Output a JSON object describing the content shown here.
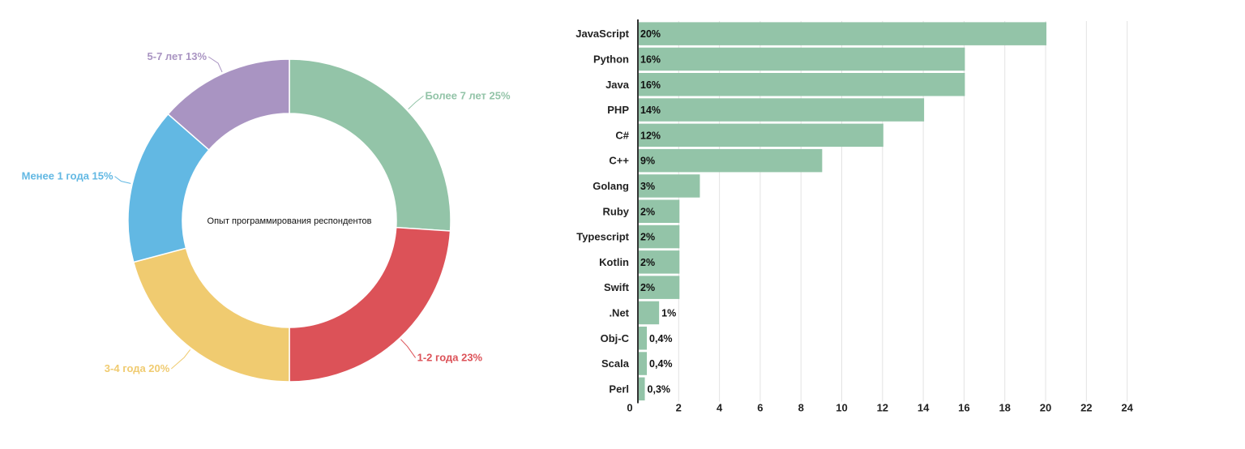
{
  "chart_data": [
    {
      "type": "pie",
      "title": "Опыт программирования респондентов",
      "categories": [
        "Более 7 лет",
        "1-2 года",
        "3-4 года",
        "Менее 1 года",
        "5-7 лет"
      ],
      "values": [
        25,
        23,
        20,
        15,
        13
      ],
      "labels": [
        "Более 7 лет 25%",
        "1-2 года 23%",
        "3-4 года 20%",
        "Менее 1 года 15%",
        "5-7 лет 13%"
      ],
      "colors": [
        "#93c4a8",
        "#dc5258",
        "#f0cb70",
        "#62b8e3",
        "#a994c2"
      ]
    },
    {
      "type": "bar",
      "orientation": "horizontal",
      "categories": [
        "JavaScript",
        "Python",
        "Java",
        "PHP",
        "C#",
        "C++",
        "Golang",
        "Ruby",
        "Typescript",
        "Kotlin",
        "Swift",
        ".Net",
        "Obj-C",
        "Scala",
        "Perl"
      ],
      "values": [
        20,
        16,
        16,
        14,
        12,
        9,
        3,
        2,
        2,
        2,
        2,
        1,
        0.4,
        0.4,
        0.3
      ],
      "value_labels": [
        "20%",
        "16%",
        "16%",
        "14%",
        "12%",
        "9%",
        "3%",
        "2%",
        "2%",
        "2%",
        "2%",
        "1%",
        "0,4%",
        "0,4%",
        "0,3%"
      ],
      "xlim": [
        0,
        24
      ],
      "xticks": [
        "0",
        "2",
        "4",
        "6",
        "8",
        "10",
        "12",
        "14",
        "16",
        "18",
        "20",
        "22",
        "24"
      ],
      "bar_color": "#93c4a8",
      "grid": true
    }
  ]
}
